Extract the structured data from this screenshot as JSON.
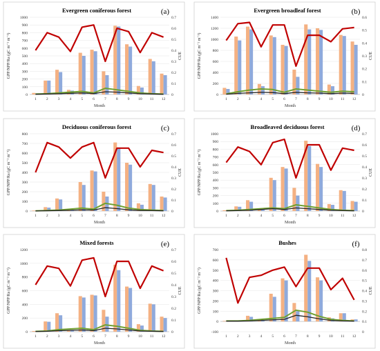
{
  "chart_data": [
    {
      "type": "bar",
      "panel_label": "(a)",
      "title": "Evergreen coniferous forest",
      "xlabel": "Month",
      "ylabel": "GPP/NPP/Ra (gC m⁻² m⁻¹)",
      "y2label": "CUE",
      "categories": [
        "1",
        "2",
        "3",
        "4",
        "5",
        "6",
        "7",
        "8",
        "9",
        "10",
        "11",
        "12"
      ],
      "ylim": [
        0,
        1000
      ],
      "yticks": [
        0,
        100,
        200,
        300,
        400,
        500,
        600,
        700,
        800,
        900,
        1000
      ],
      "y2lim": [
        0,
        0.7
      ],
      "y2ticks": [
        0,
        0.1,
        0.2,
        0.3,
        0.4,
        0.5,
        0.6,
        0.7
      ],
      "series": [
        {
          "kind": "bar",
          "color": "#f4b183",
          "values": [
            20,
            180,
            320,
            60,
            540,
            580,
            300,
            890,
            650,
            110,
            460,
            270
          ]
        },
        {
          "kind": "bar",
          "color": "#8faadc",
          "values": [
            15,
            180,
            290,
            50,
            500,
            560,
            250,
            880,
            620,
            90,
            430,
            250
          ]
        },
        {
          "kind": "line",
          "axis": "left",
          "color": "#70a030",
          "values": [
            5,
            10,
            20,
            30,
            40,
            20,
            80,
            60,
            40,
            20,
            10,
            5
          ]
        },
        {
          "kind": "line",
          "axis": "left",
          "color": "#222222",
          "values": [
            3,
            6,
            10,
            15,
            20,
            12,
            35,
            30,
            20,
            10,
            6,
            3
          ]
        },
        {
          "kind": "line",
          "axis": "right",
          "color": "#c00000",
          "values": [
            0.4,
            0.56,
            0.52,
            0.39,
            0.61,
            0.63,
            0.3,
            0.6,
            0.57,
            0.38,
            0.56,
            0.52
          ]
        }
      ]
    },
    {
      "type": "bar",
      "panel_label": "(b)",
      "title": "Evergreen broadleaf forest",
      "xlabel": "Month",
      "ylabel": "GPP/NPP/Ra (gC m⁻² m⁻¹)",
      "y2label": "CUE",
      "categories": [
        "1",
        "2",
        "3",
        "4",
        "5",
        "6",
        "7",
        "8",
        "9",
        "10",
        "11",
        "12"
      ],
      "ylim": [
        0,
        1400
      ],
      "yticks": [
        0,
        200,
        400,
        600,
        800,
        1000,
        1200,
        1400
      ],
      "y2lim": [
        0,
        0.6
      ],
      "y2ticks": [
        0,
        0.1,
        0.2,
        0.3,
        0.4,
        0.5,
        0.6
      ],
      "series": [
        {
          "kind": "bar",
          "color": "#f4b183",
          "values": [
            120,
            1050,
            1230,
            190,
            1070,
            900,
            450,
            1270,
            1200,
            180,
            1080,
            960
          ]
        },
        {
          "kind": "bar",
          "color": "#8faadc",
          "values": [
            100,
            980,
            1180,
            150,
            1040,
            880,
            320,
            1180,
            1170,
            150,
            1060,
            900
          ]
        },
        {
          "kind": "line",
          "axis": "left",
          "color": "#70a030",
          "values": [
            10,
            50,
            80,
            100,
            90,
            40,
            100,
            80,
            60,
            40,
            60,
            50
          ]
        },
        {
          "kind": "line",
          "axis": "left",
          "color": "#222222",
          "values": [
            5,
            20,
            30,
            40,
            35,
            15,
            40,
            30,
            25,
            15,
            25,
            20
          ]
        },
        {
          "kind": "line",
          "axis": "right",
          "color": "#c00000",
          "values": [
            0.42,
            0.55,
            0.56,
            0.37,
            0.54,
            0.54,
            0.22,
            0.46,
            0.46,
            0.41,
            0.51,
            0.52
          ]
        }
      ]
    },
    {
      "type": "bar",
      "panel_label": "(c)",
      "title": "Deciduous coniferous forest",
      "xlabel": "Month",
      "ylabel": "GPP/NPP/Ra (gC m⁻² m⁻¹)",
      "y2label": "CUE",
      "categories": [
        "1",
        "2",
        "3",
        "4",
        "5",
        "6",
        "7",
        "8",
        "9",
        "10",
        "11",
        "12"
      ],
      "ylim": [
        0,
        800
      ],
      "yticks": [
        0,
        100,
        200,
        300,
        400,
        500,
        600,
        700,
        800
      ],
      "y2lim": [
        0,
        0.7
      ],
      "y2ticks": [
        0,
        0.1,
        0.2,
        0.3,
        0.4,
        0.5,
        0.6,
        0.7
      ],
      "series": [
        {
          "kind": "bar",
          "color": "#f4b183",
          "values": [
            5,
            40,
            130,
            10,
            300,
            420,
            200,
            710,
            500,
            80,
            280,
            150
          ]
        },
        {
          "kind": "bar",
          "color": "#8faadc",
          "values": [
            5,
            35,
            120,
            8,
            270,
            410,
            150,
            650,
            480,
            65,
            270,
            140
          ]
        },
        {
          "kind": "line",
          "axis": "left",
          "color": "#70a030",
          "values": [
            2,
            5,
            10,
            20,
            30,
            20,
            80,
            60,
            30,
            15,
            10,
            5
          ]
        },
        {
          "kind": "line",
          "axis": "left",
          "color": "#222222",
          "values": [
            1,
            3,
            5,
            8,
            12,
            10,
            35,
            25,
            12,
            6,
            4,
            2
          ]
        },
        {
          "kind": "line",
          "axis": "right",
          "color": "#c00000",
          "values": [
            0.35,
            0.62,
            0.58,
            0.48,
            0.58,
            0.62,
            0.3,
            0.57,
            0.57,
            0.4,
            0.55,
            0.53
          ]
        }
      ]
    },
    {
      "type": "bar",
      "panel_label": "(d)",
      "title": "Broadleaved deciduous forest",
      "xlabel": "Month",
      "ylabel": "GPP/NPP/Ra (gC m⁻² m⁻¹)",
      "y2label": "CUE",
      "categories": [
        "1",
        "2",
        "3",
        "4",
        "5",
        "6",
        "7",
        "8",
        "9",
        "10",
        "11",
        "12"
      ],
      "ylim": [
        0,
        1000
      ],
      "yticks": [
        0,
        100,
        200,
        300,
        400,
        500,
        600,
        700,
        800,
        900,
        1000
      ],
      "y2lim": [
        0,
        0.7
      ],
      "y2ticks": [
        0,
        0.1,
        0.2,
        0.3,
        0.4,
        0.5,
        0.6,
        0.7
      ],
      "series": [
        {
          "kind": "bar",
          "color": "#f4b183",
          "values": [
            10,
            60,
            140,
            20,
            430,
            570,
            300,
            910,
            610,
            90,
            270,
            130
          ]
        },
        {
          "kind": "bar",
          "color": "#8faadc",
          "values": [
            8,
            55,
            120,
            15,
            400,
            550,
            200,
            840,
            570,
            80,
            260,
            120
          ]
        },
        {
          "kind": "line",
          "axis": "left",
          "color": "#70a030",
          "values": [
            5,
            10,
            20,
            30,
            40,
            30,
            80,
            60,
            40,
            20,
            10,
            5
          ]
        },
        {
          "kind": "line",
          "axis": "left",
          "color": "#222222",
          "values": [
            3,
            5,
            10,
            20,
            30,
            20,
            40,
            30,
            20,
            10,
            5,
            3
          ]
        },
        {
          "kind": "line",
          "axis": "right",
          "color": "#c00000",
          "values": [
            0.44,
            0.58,
            0.54,
            0.42,
            0.62,
            0.65,
            0.3,
            0.6,
            0.6,
            0.37,
            0.57,
            0.55
          ]
        }
      ]
    },
    {
      "type": "bar",
      "panel_label": "(e)",
      "title": "Mixed forests",
      "xlabel": "Month",
      "ylabel": "GPP/NPP/Ra (gC m⁻² m⁻¹)",
      "y2label": "CUE",
      "categories": [
        "1",
        "2",
        "3",
        "4",
        "5",
        "6",
        "7",
        "8",
        "9",
        "10",
        "11",
        "12"
      ],
      "ylim": [
        0,
        1200
      ],
      "yticks": [
        0,
        200,
        400,
        600,
        800,
        1000,
        1200
      ],
      "y2lim": [
        0,
        0.7
      ],
      "y2ticks": [
        0,
        0.1,
        0.2,
        0.3,
        0.4,
        0.5,
        0.6,
        0.7
      ],
      "series": [
        {
          "kind": "bar",
          "color": "#f4b183",
          "values": [
            10,
            150,
            270,
            20,
            520,
            540,
            320,
            980,
            660,
            110,
            410,
            220
          ]
        },
        {
          "kind": "bar",
          "color": "#8faadc",
          "values": [
            8,
            145,
            240,
            15,
            500,
            530,
            220,
            900,
            640,
            90,
            400,
            200
          ]
        },
        {
          "kind": "line",
          "axis": "left",
          "color": "#70a030",
          "values": [
            5,
            10,
            30,
            40,
            50,
            30,
            100,
            80,
            50,
            20,
            10,
            5
          ]
        },
        {
          "kind": "line",
          "axis": "left",
          "color": "#222222",
          "values": [
            3,
            6,
            15,
            20,
            25,
            15,
            50,
            40,
            25,
            10,
            6,
            3
          ]
        },
        {
          "kind": "line",
          "axis": "right",
          "color": "#c00000",
          "values": [
            0.4,
            0.56,
            0.54,
            0.39,
            0.61,
            0.63,
            0.3,
            0.6,
            0.6,
            0.37,
            0.56,
            0.52
          ]
        }
      ]
    },
    {
      "type": "bar",
      "panel_label": "(f)",
      "title": "Bushes",
      "xlabel": "Month",
      "ylabel": "GPP/NPP/Ra (gC m⁻² m⁻¹)",
      "y2label": "CUE",
      "categories": [
        "1",
        "2",
        "3",
        "4",
        "5",
        "6",
        "7",
        "8",
        "9",
        "10",
        "11",
        "12"
      ],
      "ylim": [
        -100,
        700
      ],
      "yticks": [
        -100,
        0,
        100,
        200,
        300,
        400,
        500,
        600,
        700
      ],
      "y2lim": [
        0,
        0.8
      ],
      "y2ticks": [
        0,
        0.1,
        0.2,
        0.3,
        0.4,
        0.5,
        0.6,
        0.7,
        0.8
      ],
      "series": [
        {
          "kind": "bar",
          "color": "#f4b183",
          "values": [
            5,
            10,
            55,
            10,
            270,
            420,
            180,
            650,
            430,
            40,
            80,
            20
          ]
        },
        {
          "kind": "bar",
          "color": "#8faadc",
          "values": [
            4,
            8,
            45,
            8,
            240,
            400,
            100,
            590,
            400,
            30,
            80,
            20
          ]
        },
        {
          "kind": "line",
          "axis": "left",
          "color": "#70a030",
          "values": [
            5,
            5,
            10,
            20,
            30,
            40,
            110,
            90,
            50,
            20,
            10,
            5
          ]
        },
        {
          "kind": "line",
          "axis": "left",
          "color": "#222222",
          "values": [
            3,
            3,
            5,
            10,
            15,
            20,
            60,
            45,
            25,
            10,
            5,
            3
          ]
        },
        {
          "kind": "line",
          "axis": "right",
          "color": "#c00000",
          "values": [
            0.72,
            0.28,
            0.53,
            0.55,
            0.6,
            0.63,
            0.44,
            0.62,
            0.62,
            0.41,
            0.52,
            0.31
          ]
        }
      ]
    }
  ]
}
